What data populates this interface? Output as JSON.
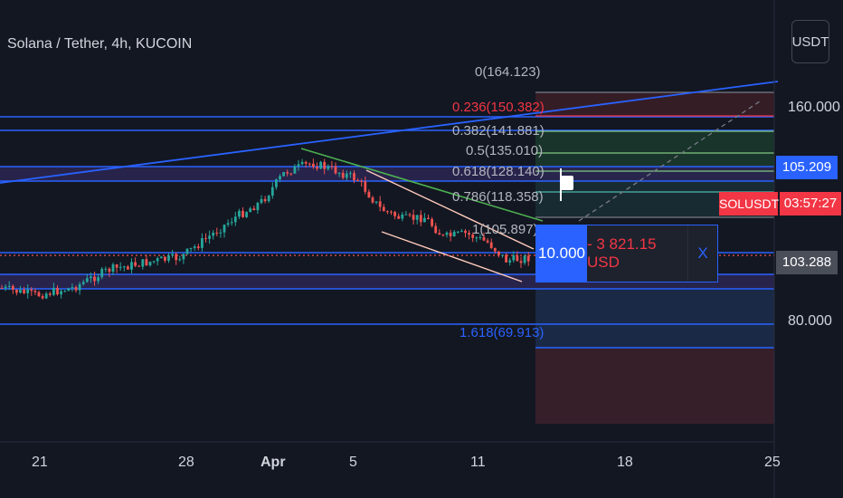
{
  "header": {
    "title": "Solana / Tether, 4h, KUCOIN"
  },
  "currency_button": "USDT",
  "price_axis": {
    "labels": [
      "160.000",
      "80.000"
    ]
  },
  "price_tags": {
    "alert": "105.209",
    "symbol": "SOLUSDT",
    "countdown": "03:57:27",
    "last": "103.288"
  },
  "fib_levels": [
    {
      "text": "0(164.123)",
      "color": "#b2b5be"
    },
    {
      "text": "0.236(150.382)",
      "color": "#f23645"
    },
    {
      "text": "0.382(141.881)",
      "color": "#b2b5be"
    },
    {
      "text": "0.5(135.010)",
      "color": "#b2b5be"
    },
    {
      "text": "0.618(128.140)",
      "color": "#b2b5be"
    },
    {
      "text": "0.786(118.358)",
      "color": "#b2b5be"
    },
    {
      "text": "1(105.897)",
      "color": "#b2b5be"
    },
    {
      "text": "1.618(69.913)",
      "color": "#2962ff"
    }
  ],
  "order": {
    "qty": "10.000",
    "pnl": "- 3 821.15 USD",
    "close": "X"
  },
  "time_axis": [
    "21",
    "28",
    "Apr",
    "5",
    "11",
    "18",
    "25"
  ],
  "colors": {
    "bg": "#131722",
    "up": "#26a69a",
    "down": "#ef5350",
    "hline": "#2962ff",
    "accent": "#2962ff"
  }
}
